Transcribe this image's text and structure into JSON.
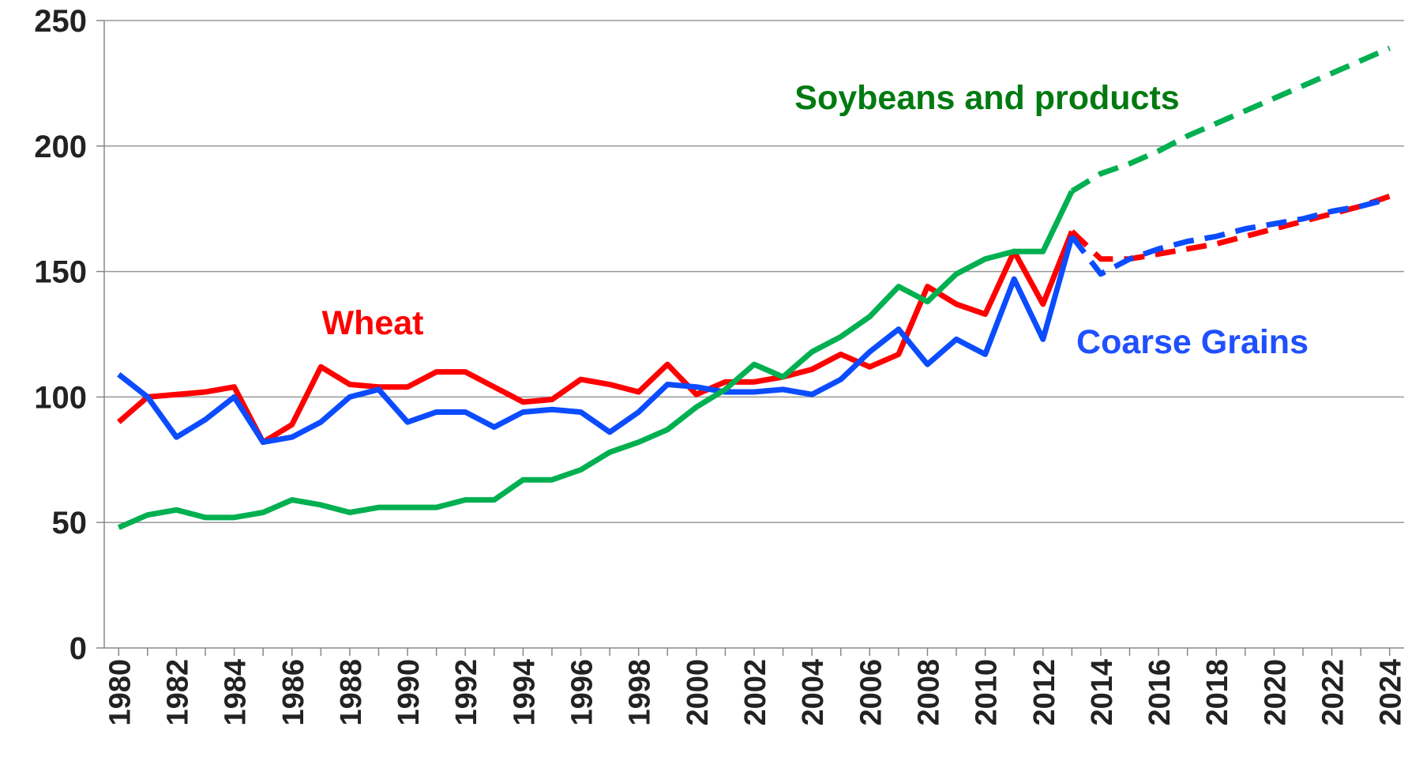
{
  "chart_data": {
    "type": "line",
    "x": [
      1980,
      1981,
      1982,
      1983,
      1984,
      1985,
      1986,
      1987,
      1988,
      1989,
      1990,
      1991,
      1992,
      1993,
      1994,
      1995,
      1996,
      1997,
      1998,
      1999,
      2000,
      2001,
      2002,
      2003,
      2004,
      2005,
      2006,
      2007,
      2008,
      2009,
      2010,
      2011,
      2012,
      2013,
      2014,
      2015,
      2016,
      2017,
      2018,
      2019,
      2020,
      2021,
      2022,
      2023,
      2024
    ],
    "projected_from": 2013,
    "series": [
      {
        "name": "Wheat",
        "color": "#ff0000",
        "label_color": "#ff0000",
        "values": [
          90,
          100,
          101,
          102,
          104,
          82,
          89,
          112,
          105,
          104,
          104,
          110,
          110,
          104,
          98,
          99,
          107,
          105,
          102,
          113,
          101,
          106,
          106,
          108,
          111,
          117,
          112,
          117,
          144,
          137,
          133,
          158,
          137,
          166,
          155,
          155,
          157,
          159,
          161,
          164,
          167,
          170,
          173,
          176,
          180
        ]
      },
      {
        "name": "Coarse Grains",
        "color": "#0b4cff",
        "label_color": "#1f4fff",
        "values": [
          109,
          100,
          84,
          91,
          100,
          82,
          84,
          90,
          100,
          103,
          90,
          94,
          94,
          88,
          94,
          95,
          94,
          86,
          94,
          105,
          104,
          102,
          102,
          103,
          101,
          107,
          118,
          127,
          113,
          123,
          117,
          147,
          123,
          164,
          149,
          155,
          159,
          162,
          164,
          167,
          169,
          171,
          174,
          176,
          179
        ]
      },
      {
        "name": "Soybeans and products",
        "color": "#00b050",
        "label_color": "#007a10",
        "values": [
          48,
          53,
          55,
          52,
          52,
          54,
          59,
          57,
          54,
          56,
          56,
          56,
          59,
          59,
          67,
          67,
          71,
          78,
          82,
          87,
          96,
          103,
          113,
          108,
          118,
          124,
          132,
          144,
          138,
          149,
          155,
          158,
          158,
          182,
          189,
          193,
          198,
          204,
          209,
          214,
          219,
          224,
          229,
          234,
          239
        ]
      }
    ],
    "xlim": [
      1979.5,
      2024.5
    ],
    "xticks": [
      1980,
      1982,
      1984,
      1986,
      1988,
      1990,
      1992,
      1994,
      1996,
      1998,
      2000,
      2002,
      2004,
      2006,
      2008,
      2010,
      2012,
      2014,
      2016,
      2018,
      2020,
      2022,
      2024
    ],
    "ylim": [
      0,
      250
    ],
    "yticks": [
      0,
      50,
      100,
      150,
      200,
      250
    ],
    "grid": true
  }
}
